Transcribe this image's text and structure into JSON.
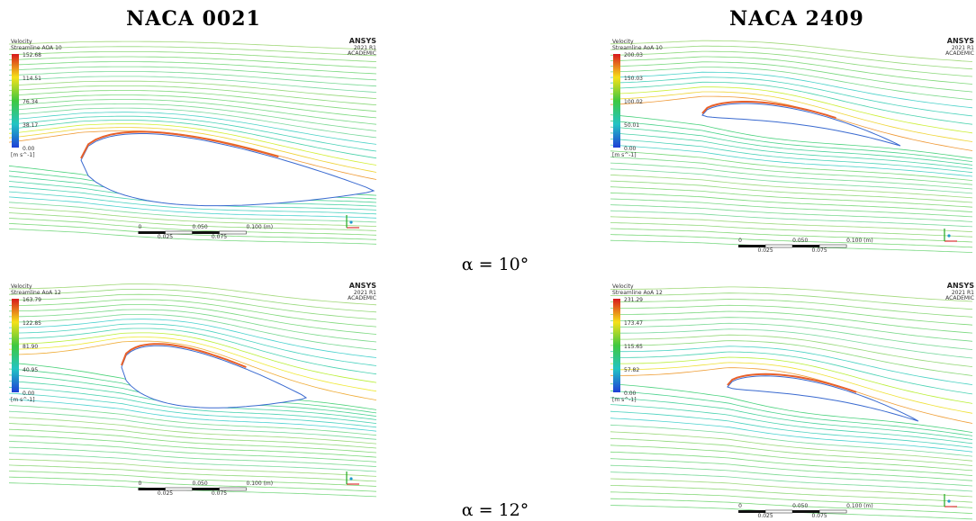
{
  "headers": [
    "NACA 0021",
    "NACA 2409"
  ],
  "angles": [
    "α = 10°",
    "α = 12°"
  ],
  "panels": [
    {
      "legend_title": "Velocity",
      "legend_subtitle": "Streamline AOA 10",
      "ticks": [
        "152.68",
        "114.51",
        "76.34",
        "38.17",
        "0.00"
      ],
      "unit": "[m s^-1]",
      "logo": "ANSYS",
      "version": "2021 R1",
      "academic": "ACADEMIC",
      "scale_labels": [
        "0",
        "0.050",
        "0.100 (m)"
      ],
      "scale_sub": [
        "0.025",
        "0.075"
      ]
    },
    {
      "legend_title": "Velocity",
      "legend_subtitle": "Streamline AoA 10",
      "ticks": [
        "200.03",
        "150.03",
        "100.02",
        "50.01",
        "0.00"
      ],
      "unit": "[m s^-1]",
      "logo": "ANSYS",
      "version": "2021 R1",
      "academic": "ACADEMIC",
      "scale_labels": [
        "0",
        "0.050",
        "0.100 (m)"
      ],
      "scale_sub": [
        "0.025",
        "0.075"
      ]
    },
    {
      "legend_title": "Velocity",
      "legend_subtitle": "Streamline AoA 12",
      "ticks": [
        "163.79",
        "122.85",
        "81.90",
        "40.95",
        "0.00"
      ],
      "unit": "[m s^-1]",
      "logo": "ANSYS",
      "version": "2021 R1",
      "academic": "ACADEMIC",
      "scale_labels": [
        "0",
        "0.050",
        "0.100 (m)"
      ],
      "scale_sub": [
        "0.025",
        "0.075"
      ]
    },
    {
      "legend_title": "Velocity",
      "legend_subtitle": "Streamline AoA 12",
      "ticks": [
        "231.29",
        "173.47",
        "115.65",
        "57.82",
        "0.00"
      ],
      "unit": "[m s^-1]",
      "logo": "ANSYS",
      "version": "2021 R1",
      "academic": "ACADEMIC",
      "scale_labels": [
        "0",
        "0.050",
        "0.100 (m)"
      ],
      "scale_sub": [
        "0.025",
        "0.075"
      ]
    }
  ]
}
